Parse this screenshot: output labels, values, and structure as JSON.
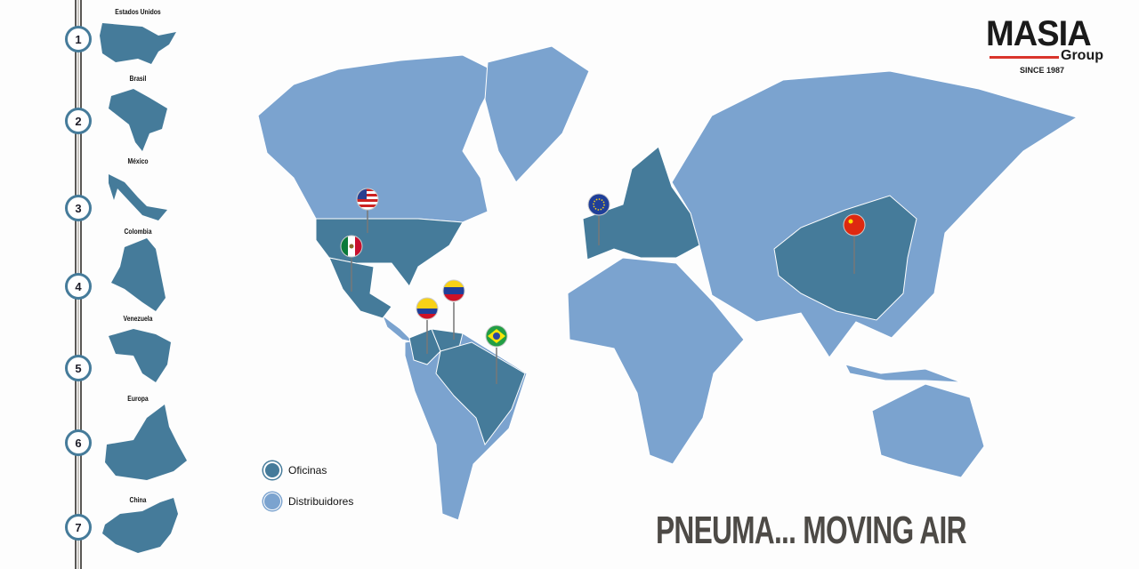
{
  "colors": {
    "oficinas": "#457b9a",
    "distribuidores": "#7ba3cf",
    "tagline": "#4d4a46",
    "logo_accent": "#d9342b"
  },
  "timeline": [
    {
      "number": "1",
      "label": "Estados Unidos"
    },
    {
      "number": "2",
      "label": "Brasil"
    },
    {
      "number": "3",
      "label": "México"
    },
    {
      "number": "4",
      "label": "Colombia"
    },
    {
      "number": "5",
      "label": "Venezuela"
    },
    {
      "number": "6",
      "label": "Europa"
    },
    {
      "number": "7",
      "label": "China"
    }
  ],
  "legend": {
    "oficinas": "Oficinas",
    "distribuidores": "Distribuidores"
  },
  "logo": {
    "name": "MASIA",
    "group": "Group",
    "since": "SINCE 1987"
  },
  "tagline": "PNEUMA... MOVING AIR",
  "pins": [
    "flag-usa-icon",
    "flag-mexico-icon",
    "flag-colombia-icon",
    "flag-venezuela-icon",
    "flag-brazil-icon",
    "flag-eu-icon",
    "flag-china-icon"
  ]
}
